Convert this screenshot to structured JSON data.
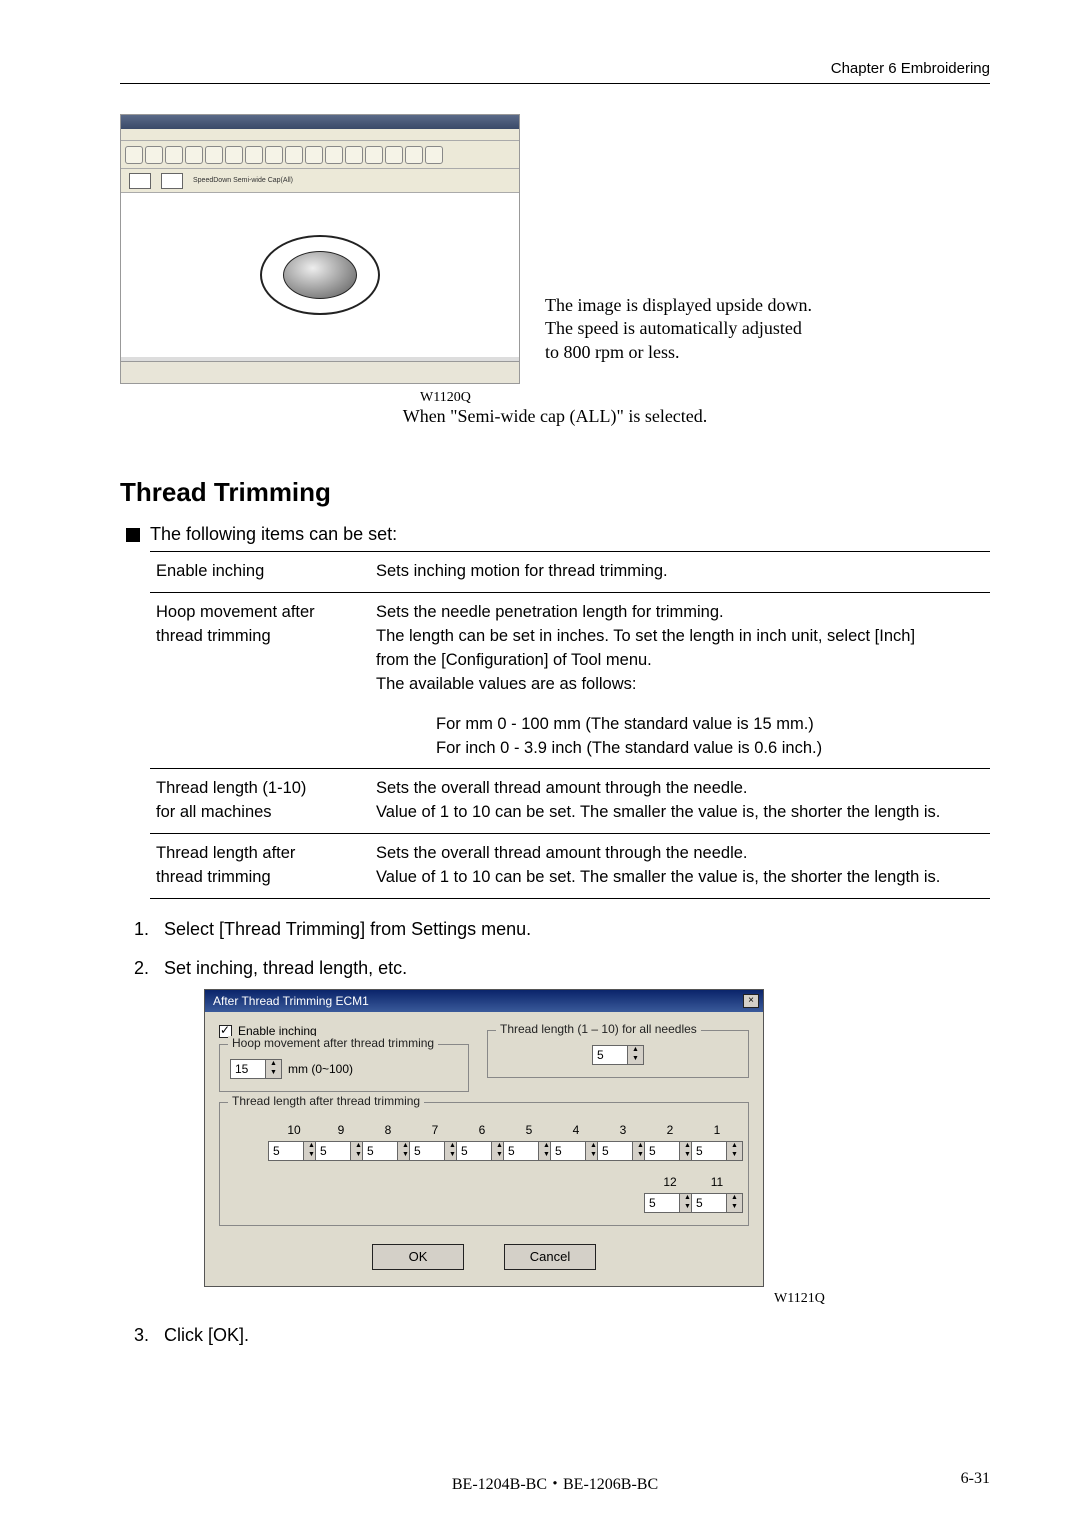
{
  "page": {
    "chapter_header": "Chapter 6   Embroidering",
    "footer_left": "BE-1204B-BC・BE-1206B-BC",
    "footer_right": "6-31"
  },
  "fig1": {
    "side_note_l1": "The image is displayed upside down.",
    "side_note_l2": "The speed is automatically adjusted",
    "side_note_l3": "to 800 rpm or less.",
    "code": "W1120Q",
    "caption": "When \"Semi-wide cap (ALL)\" is selected.",
    "subbar_text": "SpeedDown Semi-wide Cap(All)"
  },
  "section": {
    "title": "Thread Trimming",
    "bullet": "The following items can be set:"
  },
  "table": {
    "r1": {
      "label": "Enable inching",
      "desc": "Sets inching motion for thread trimming."
    },
    "r2": {
      "label_l1": "Hoop movement after",
      "label_l2": "thread trimming",
      "d1": "Sets the needle penetration length for trimming.",
      "d2": "The length can be set in inches.    To set the length in inch unit, select [Inch]",
      "d3": "from the [Configuration] of Tool menu.",
      "d4": "The available values are as follows:",
      "mm": "For mm     0 - 100 mm (The standard value is 15 mm.)",
      "inch": "For inch    0 - 3.9 inch (The standard value is 0.6 inch.)"
    },
    "r3": {
      "label_l1": "Thread length (1-10)",
      "label_l2": "for all machines",
      "d1": "Sets the overall thread amount through the needle.",
      "d2": "Value of 1 to 10 can be set.    The smaller the value is, the shorter the length is."
    },
    "r4": {
      "label_l1": "Thread length after",
      "label_l2": "thread trimming",
      "d1": "Sets the overall thread amount through the needle.",
      "d2": "Value of 1 to 10 can be set.    The smaller the value is, the shorter the length is."
    }
  },
  "steps": {
    "s1": "Select [Thread Trimming] from Settings menu.",
    "s2": "Set inching, thread length, etc.",
    "s3": "Click [OK]."
  },
  "dialog": {
    "title": "After Thread Trimming ECM1",
    "enable_inching": "Enable inching",
    "hoop_group": "Hoop movement after thread trimming",
    "hoop_value": "15",
    "hoop_range": "mm (0~100)",
    "tl_group": "Thread length (1 – 10) for all needles",
    "tl_value": "5",
    "needles_group": "Thread  length after thread trimming",
    "row1": [
      "10",
      "9",
      "8",
      "7",
      "6",
      "5",
      "4",
      "3",
      "2",
      "1"
    ],
    "row2": [
      "12",
      "11"
    ],
    "needle_val": "5",
    "ok": "OK",
    "cancel": "Cancel",
    "code": "W1121Q"
  }
}
